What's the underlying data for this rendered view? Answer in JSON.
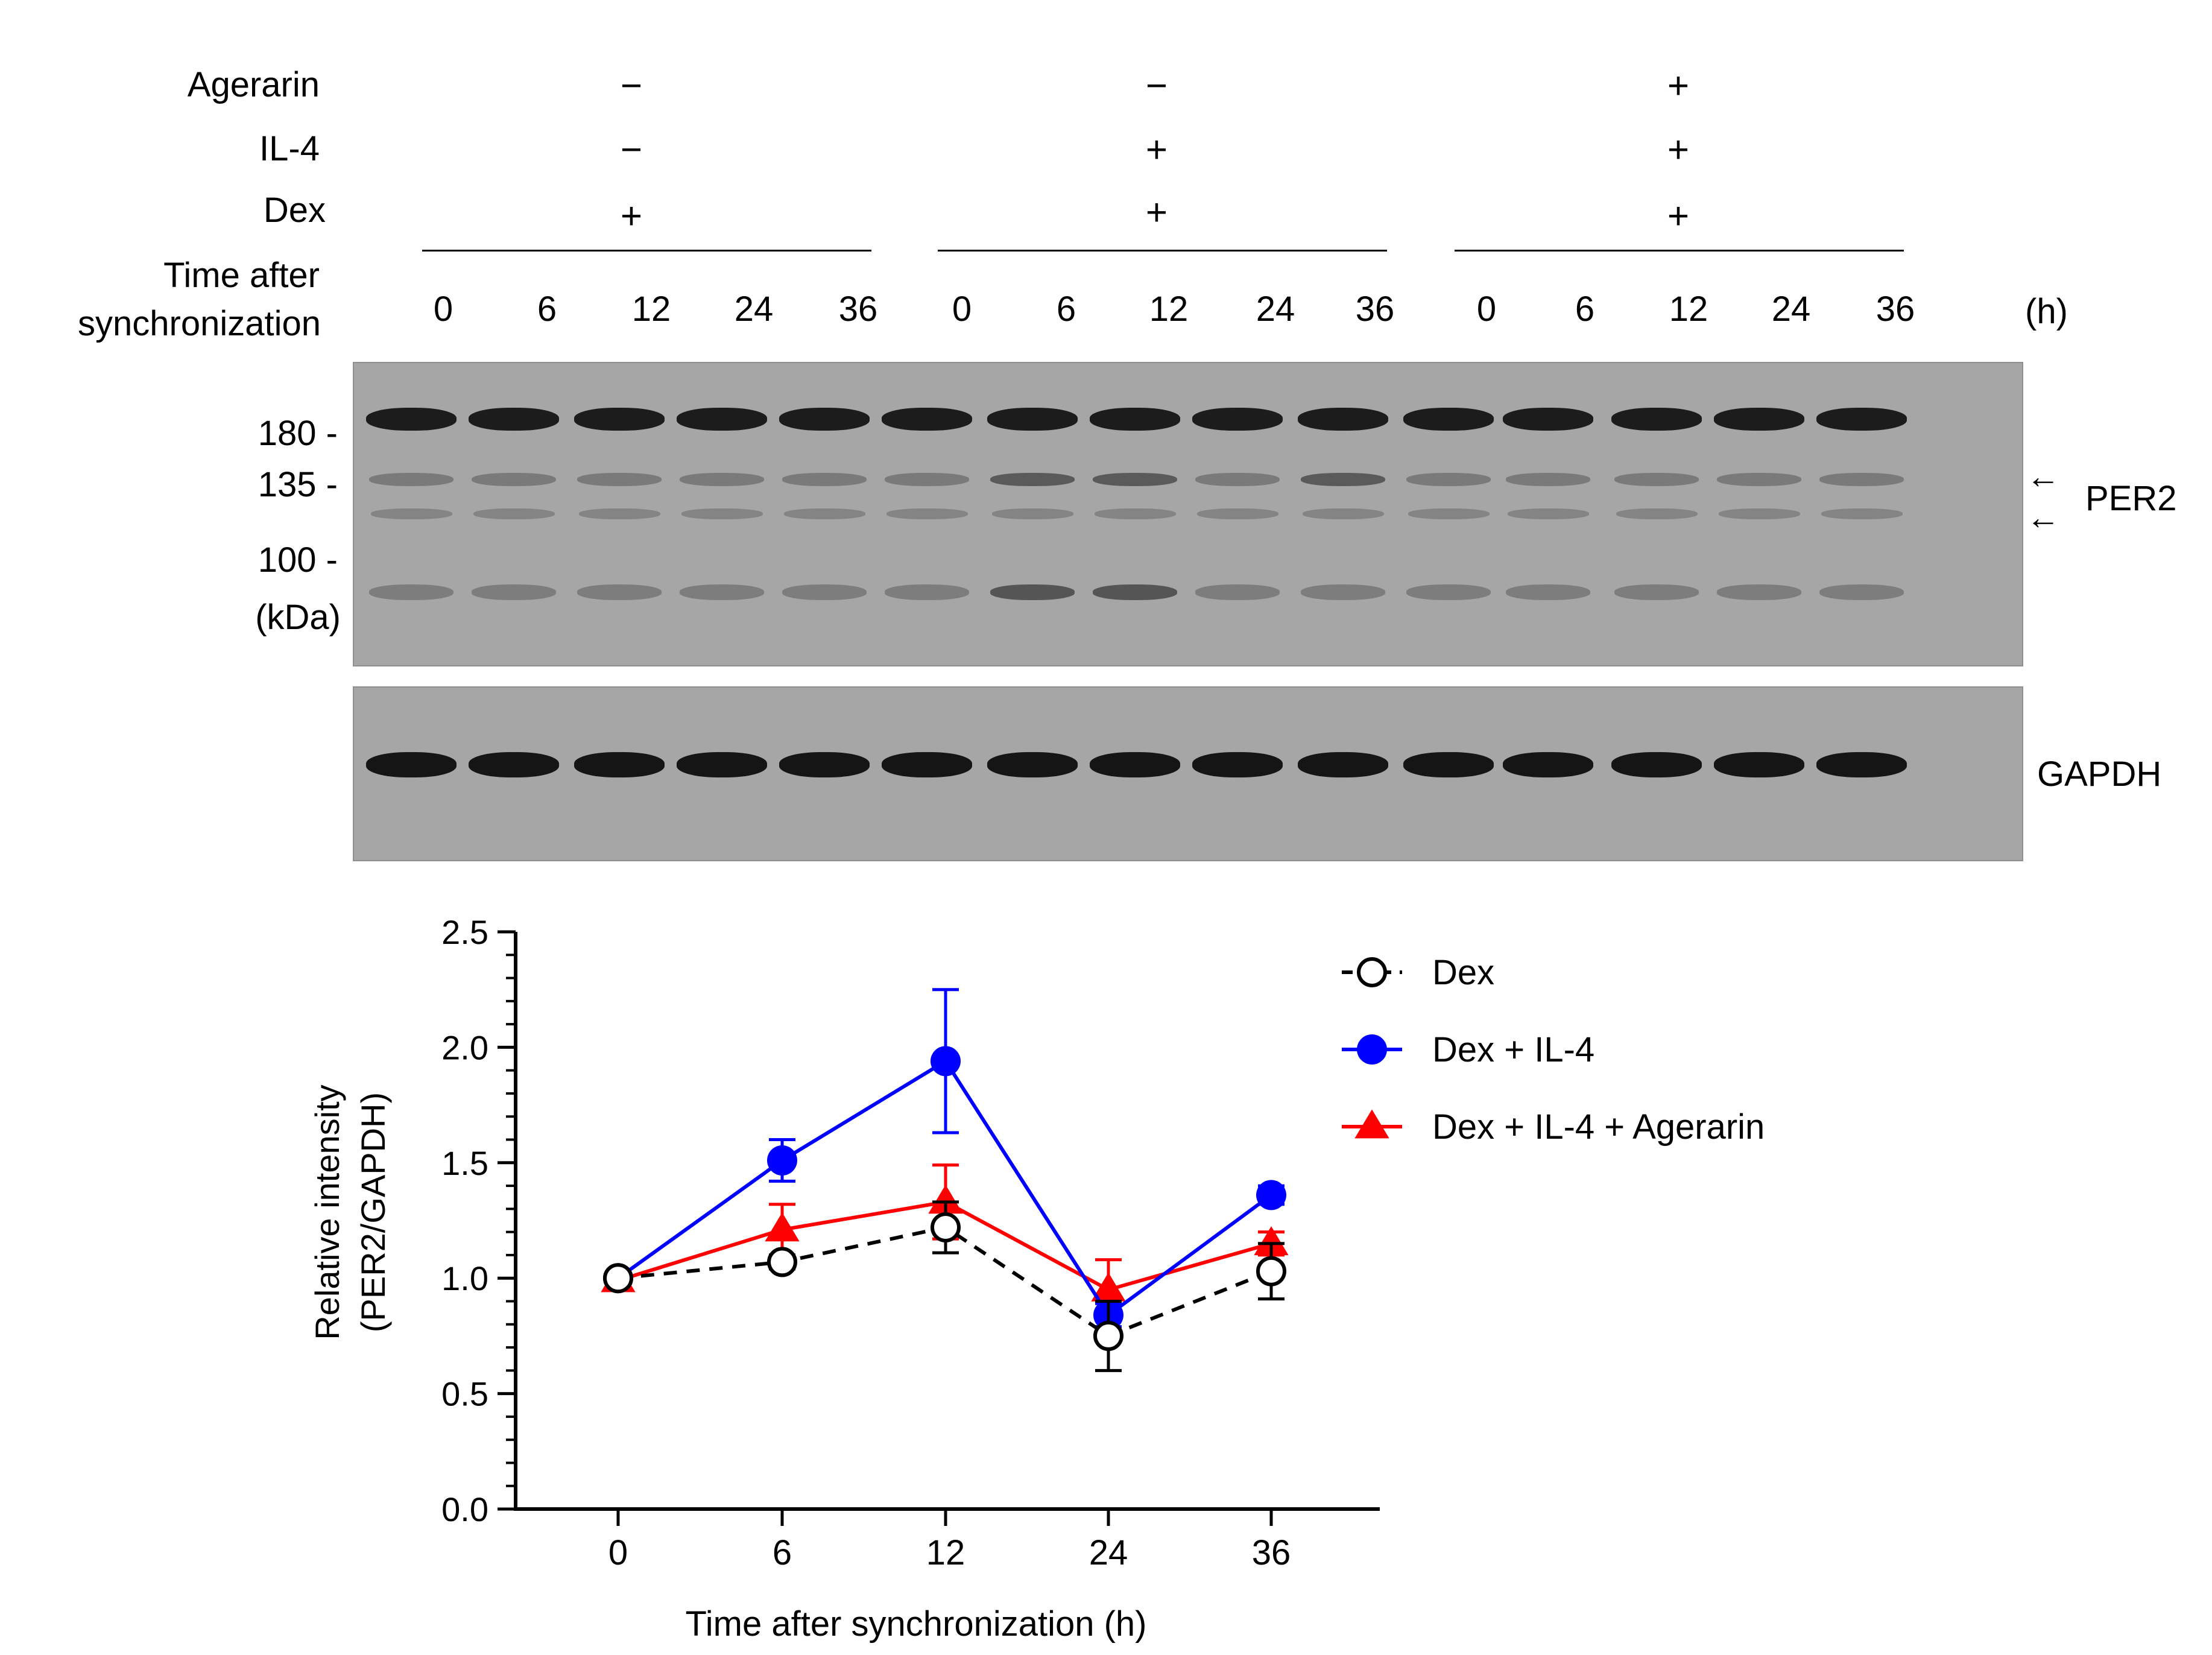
{
  "conditions": {
    "agerarin_label": "Agerarin",
    "il4_label": "IL-4",
    "dex_label": "Dex",
    "time_label_line1": "Time after",
    "time_label_line2": "synchronization",
    "unit_label": "(h)",
    "groups": [
      {
        "agerarin": "−",
        "il4": "−",
        "dex": "+",
        "times": [
          "0",
          "6",
          "12",
          "24",
          "36"
        ]
      },
      {
        "agerarin": "−",
        "il4": "+",
        "dex": "+",
        "times": [
          "0",
          "6",
          "12",
          "24",
          "36"
        ]
      },
      {
        "agerarin": "+",
        "il4": "+",
        "dex": "+",
        "times": [
          "0",
          "6",
          "12",
          "24",
          "36"
        ]
      }
    ]
  },
  "blot": {
    "markers": [
      "180 -",
      "135 -",
      "100 -"
    ],
    "unit": "(kDa)",
    "per2_label": "PER2",
    "gapdh_label": "GAPDH",
    "arrow_glyph": "←"
  },
  "chart_data": {
    "type": "line",
    "x": [
      0,
      6,
      12,
      24,
      36
    ],
    "xticklabels": [
      "0",
      "6",
      "12",
      "24",
      "36"
    ],
    "xlabel": "Time after synchronization (h)",
    "ylabel_line1": "Relative intensity",
    "ylabel_line2": "(PER2/GAPDH)",
    "ylim": [
      0.0,
      2.5
    ],
    "yticks": [
      "0.0",
      "0.5",
      "1.0",
      "1.5",
      "2.0",
      "2.5"
    ],
    "legend_position": "top-right",
    "series": [
      {
        "name": "Dex",
        "values": [
          1.0,
          1.07,
          1.22,
          0.75,
          1.03
        ],
        "errors": [
          0.02,
          0.03,
          0.11,
          0.15,
          0.12
        ],
        "color": "#000000",
        "marker": "open-circle",
        "line": "dashed"
      },
      {
        "name": "Dex + IL-4",
        "values": [
          1.0,
          1.51,
          1.94,
          0.84,
          1.36
        ],
        "errors": [
          0.02,
          0.09,
          0.31,
          0.05,
          0.04
        ],
        "color": "#0000ff",
        "marker": "circle",
        "line": "solid"
      },
      {
        "name": "Dex + IL-4 + Agerarin",
        "values": [
          0.99,
          1.21,
          1.33,
          0.95,
          1.15
        ],
        "errors": [
          0.03,
          0.11,
          0.16,
          0.13,
          0.05
        ],
        "color": "#ff0000",
        "marker": "triangle",
        "line": "solid"
      }
    ]
  }
}
